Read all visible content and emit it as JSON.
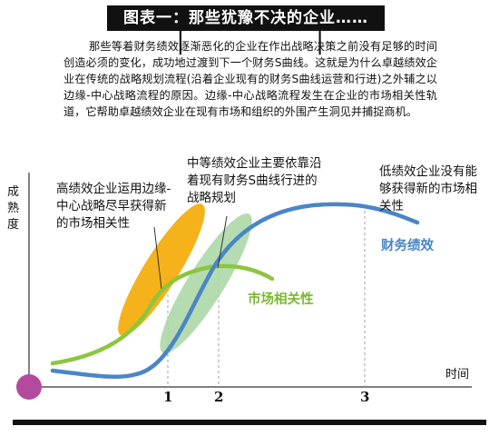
{
  "header": {
    "title": "图表一：那些犹豫不决的企业……",
    "intro": "那些等着财务绩效逐渐恶化的企业在作出战略决策之前没有足够的时间创造必须的变化，成功地过渡到下一个财务S曲线。这就是为什么卓越绩效企业在传统的战略规划流程(沿着企业现有的财务S曲线运营和行进)之外辅之以边缘-中心战略流程的原因。边缘-中心战略流程发生在企业的市场相关性轨道，它帮助卓越绩效企业在现有市场和组织的外围产生洞见并捕捉商机。"
  },
  "axes": {
    "y_label": "成熟度",
    "x_label": "时间",
    "ticks": [
      "1",
      "2",
      "3"
    ]
  },
  "annotations": {
    "high_performers": "高绩效企业运用边缘-中心战略尽早获得新的市场相关性",
    "mid_performers": "中等绩效企业主要依靠沿着现有财务S曲线行进的战略规划",
    "low_performers": "低绩效企业没有能够获得新的市场相关性"
  },
  "curves": {
    "financial": {
      "label": "财务绩效",
      "color": "#4a86c5"
    },
    "market": {
      "label": "市场相关性",
      "color": "#8cc63f"
    }
  },
  "colors": {
    "orange_ellipse": "#f5b21b",
    "green_ellipse": "#a8d5a2",
    "origin_dot": "#b34a9e",
    "frame": "#111111"
  }
}
